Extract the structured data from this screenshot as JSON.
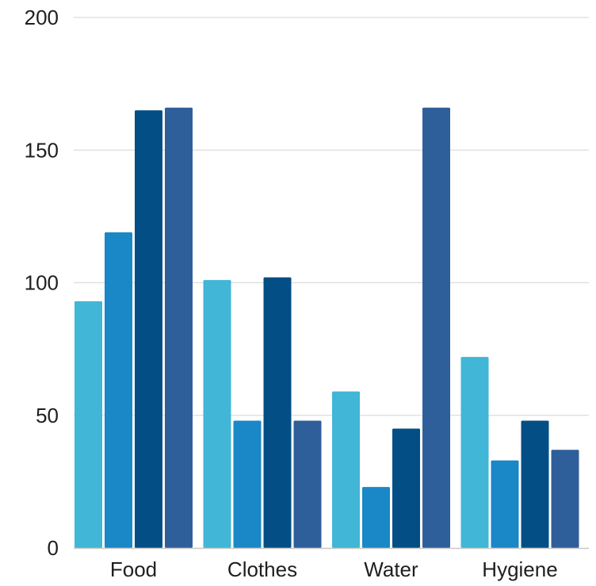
{
  "chart_data": {
    "type": "bar",
    "categories": [
      "Food",
      "Clothes",
      "Water",
      "Hygiene"
    ],
    "series": [
      {
        "values": [
          93,
          101,
          59,
          72
        ],
        "color": "#41B6D6"
      },
      {
        "values": [
          119,
          48,
          23,
          33
        ],
        "color": "#1A87C7"
      },
      {
        "values": [
          165,
          102,
          45,
          48
        ],
        "color": "#034F85"
      },
      {
        "values": [
          166,
          48,
          166,
          37
        ],
        "color": "#2F5F9A"
      }
    ],
    "y_ticks": [
      0,
      50,
      100,
      150,
      200
    ],
    "ylim": [
      0,
      200
    ],
    "grid": true,
    "title": "",
    "xlabel": "",
    "ylabel": ""
  }
}
